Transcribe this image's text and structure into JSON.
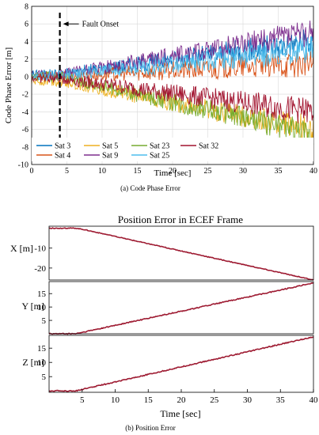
{
  "chart_data": [
    {
      "type": "line",
      "xlabel": "Time [sec]",
      "ylabel": "Code Phase Error [m]",
      "xlim": [
        0,
        40
      ],
      "ylim": [
        -10,
        8
      ],
      "xticks": [
        0,
        5,
        10,
        15,
        20,
        25,
        30,
        35,
        40
      ],
      "yticks": [
        -10,
        -8,
        -6,
        -4,
        -2,
        0,
        2,
        4,
        6,
        8
      ],
      "grid": true,
      "legend_position": "bottom",
      "annotation": {
        "text": "Fault Onset",
        "x": 4
      },
      "series": [
        {
          "name": "Sat 3",
          "color": "#0072bd",
          "start": 0.3,
          "end": 4.0
        },
        {
          "name": "Sat 4",
          "color": "#d95319",
          "start": 0.0,
          "end": 1.5
        },
        {
          "name": "Sat 5",
          "color": "#edb120",
          "start": -0.5,
          "end": -6.0
        },
        {
          "name": "Sat 9",
          "color": "#7e2f8e",
          "start": 0.2,
          "end": 5.0
        },
        {
          "name": "Sat 23",
          "color": "#77ac30",
          "start": 0.0,
          "end": -6.5
        },
        {
          "name": "Sat 25",
          "color": "#4dbeee",
          "start": 0.1,
          "end": 3.0
        },
        {
          "name": "Sat 32",
          "color": "#a2142f",
          "start": -0.2,
          "end": -4.0
        }
      ],
      "caption": "(a)  Code Phase Error"
    },
    {
      "type": "line",
      "title": "Position Error in ECEF Frame",
      "xlabel": "Time [sec]",
      "xlim": [
        0,
        40
      ],
      "xticks": [
        5,
        10,
        15,
        20,
        25,
        30,
        35,
        40
      ],
      "color": "#9e1b32",
      "subplots": [
        {
          "ylabel": "X [m]",
          "ylim": [
            -26,
            1
          ],
          "yticks": [
            -10,
            -20
          ],
          "points": [
            [
              0,
              0
            ],
            [
              4,
              0
            ],
            [
              5,
              -0.5
            ],
            [
              40,
              -26
            ]
          ]
        },
        {
          "ylabel": "Y [m]",
          "ylim": [
            0,
            19.5
          ],
          "yticks": [
            5,
            10,
            15
          ],
          "points": [
            [
              0,
              0
            ],
            [
              4,
              0
            ],
            [
              5,
              0.5
            ],
            [
              40,
              19
            ]
          ]
        },
        {
          "ylabel": "Z [m]",
          "ylim": [
            -0.5,
            19.5
          ],
          "yticks": [
            5,
            10,
            15
          ],
          "points": [
            [
              0,
              0
            ],
            [
              4,
              0
            ],
            [
              5,
              0.5
            ],
            [
              40,
              19
            ]
          ]
        }
      ],
      "caption": "(b)  Position Error"
    }
  ]
}
